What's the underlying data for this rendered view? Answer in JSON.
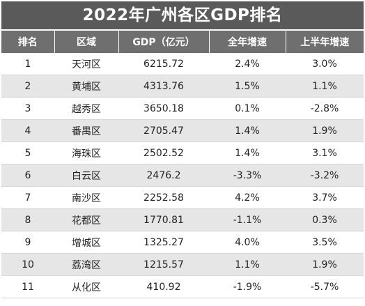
{
  "title": "2022年广州各区GDP排名",
  "headers": [
    "排名",
    "区域",
    "GDP（亿元）",
    "全年增速",
    "上半年增速"
  ],
  "rows": [
    [
      "1",
      "天河区",
      "6215.72",
      "2.4%",
      "3.0%"
    ],
    [
      "2",
      "黄埔区",
      "4313.76",
      "1.5%",
      "1.1%"
    ],
    [
      "3",
      "越秀区",
      "3650.18",
      "0.1%",
      "-2.8%"
    ],
    [
      "4",
      "番禺区",
      "2705.47",
      "1.4%",
      "1.9%"
    ],
    [
      "5",
      "海珠区",
      "2502.52",
      "1.4%",
      "3.1%"
    ],
    [
      "6",
      "白云区",
      "2476.2",
      "-3.3%",
      "-3.2%"
    ],
    [
      "7",
      "南沙区",
      "2252.58",
      "4.2%",
      "3.7%"
    ],
    [
      "8",
      "花都区",
      "1770.81",
      "-1.1%",
      "0.3%"
    ],
    [
      "9",
      "增城区",
      "1325.27",
      "4.0%",
      "3.5%"
    ],
    [
      "10",
      "荔湾区",
      "1215.57",
      "1.1%",
      "1.9%"
    ],
    [
      "11",
      "从化区",
      "410.92",
      "-1.9%",
      "-5.7%"
    ]
  ]
}
